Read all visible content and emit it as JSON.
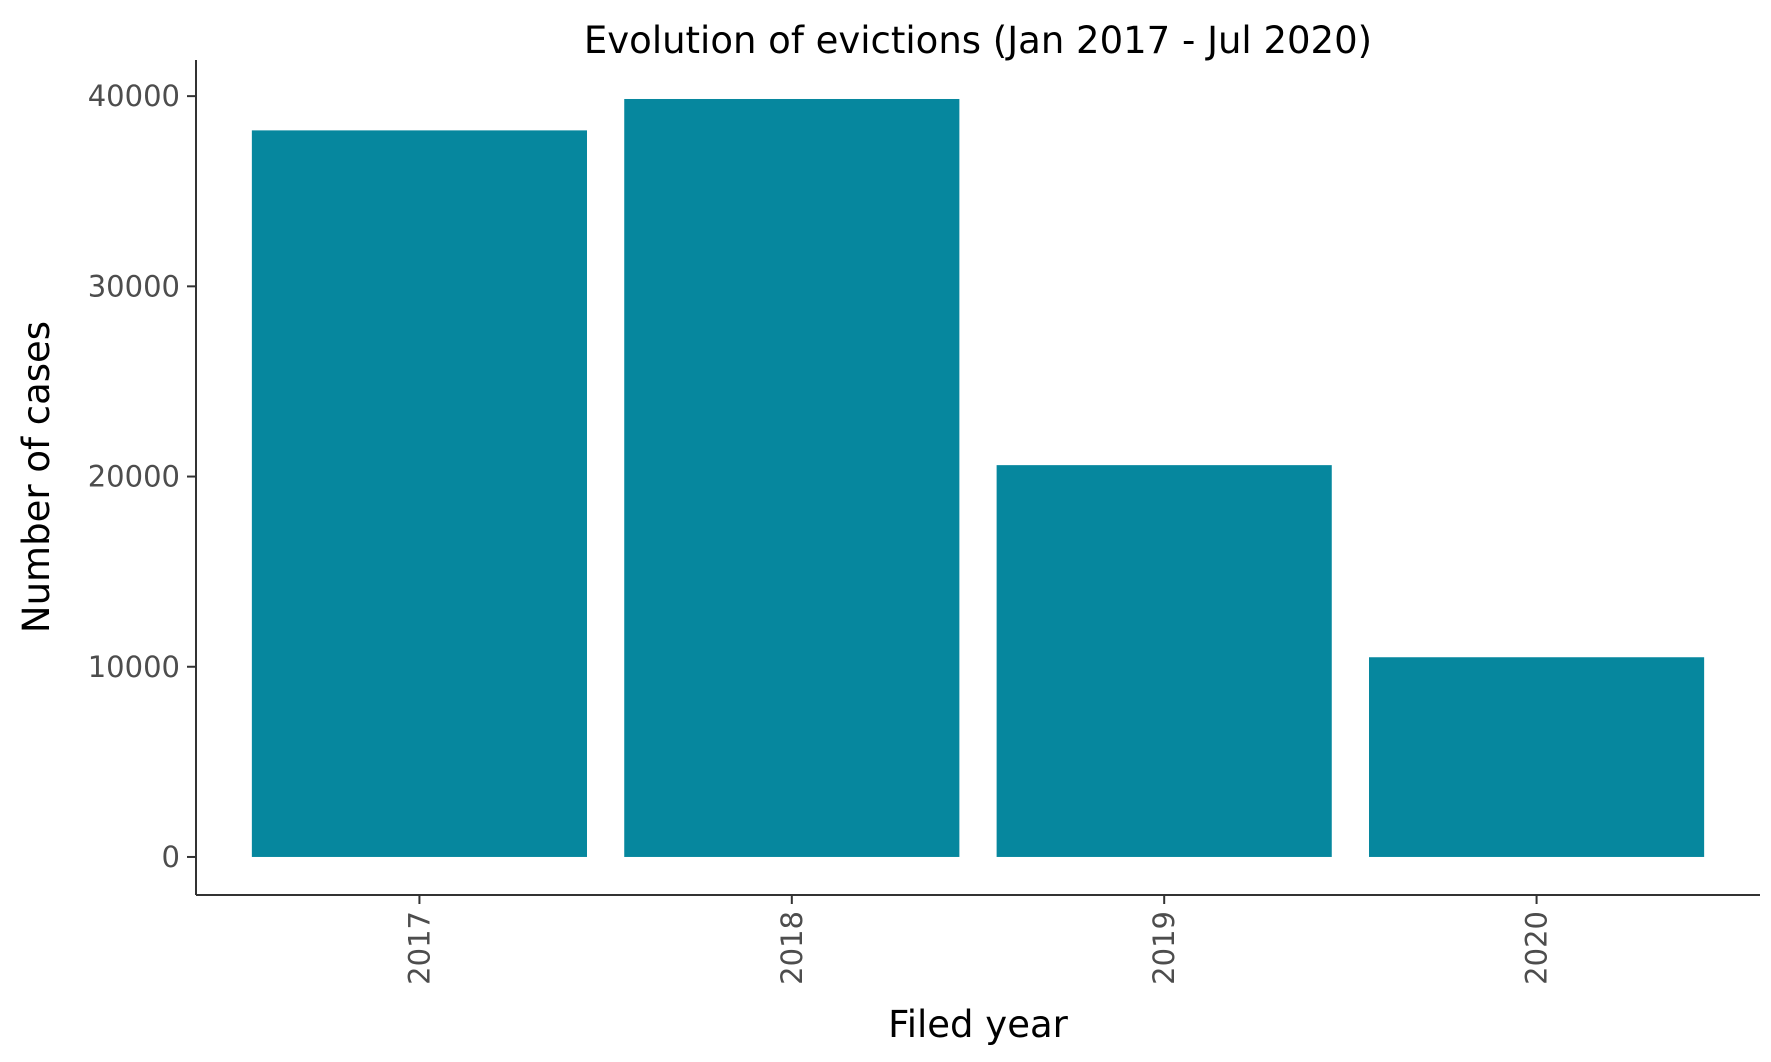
{
  "chart_data": {
    "type": "bar",
    "title": "Evolution of evictions (Jan 2017 - Jul 2020)",
    "xlabel": "Filed year",
    "ylabel": "Number of cases",
    "categories": [
      "2017",
      "2018",
      "2019",
      "2020"
    ],
    "values": [
      38200,
      39850,
      20600,
      10500
    ],
    "ylim": [
      -2000,
      41900
    ],
    "yticks": [
      0,
      10000,
      20000,
      30000,
      40000
    ],
    "ytick_labels": [
      "0",
      "10000",
      "20000",
      "30000",
      "40000"
    ],
    "bar_color": "#06879e",
    "grid": false,
    "legend": "none"
  }
}
